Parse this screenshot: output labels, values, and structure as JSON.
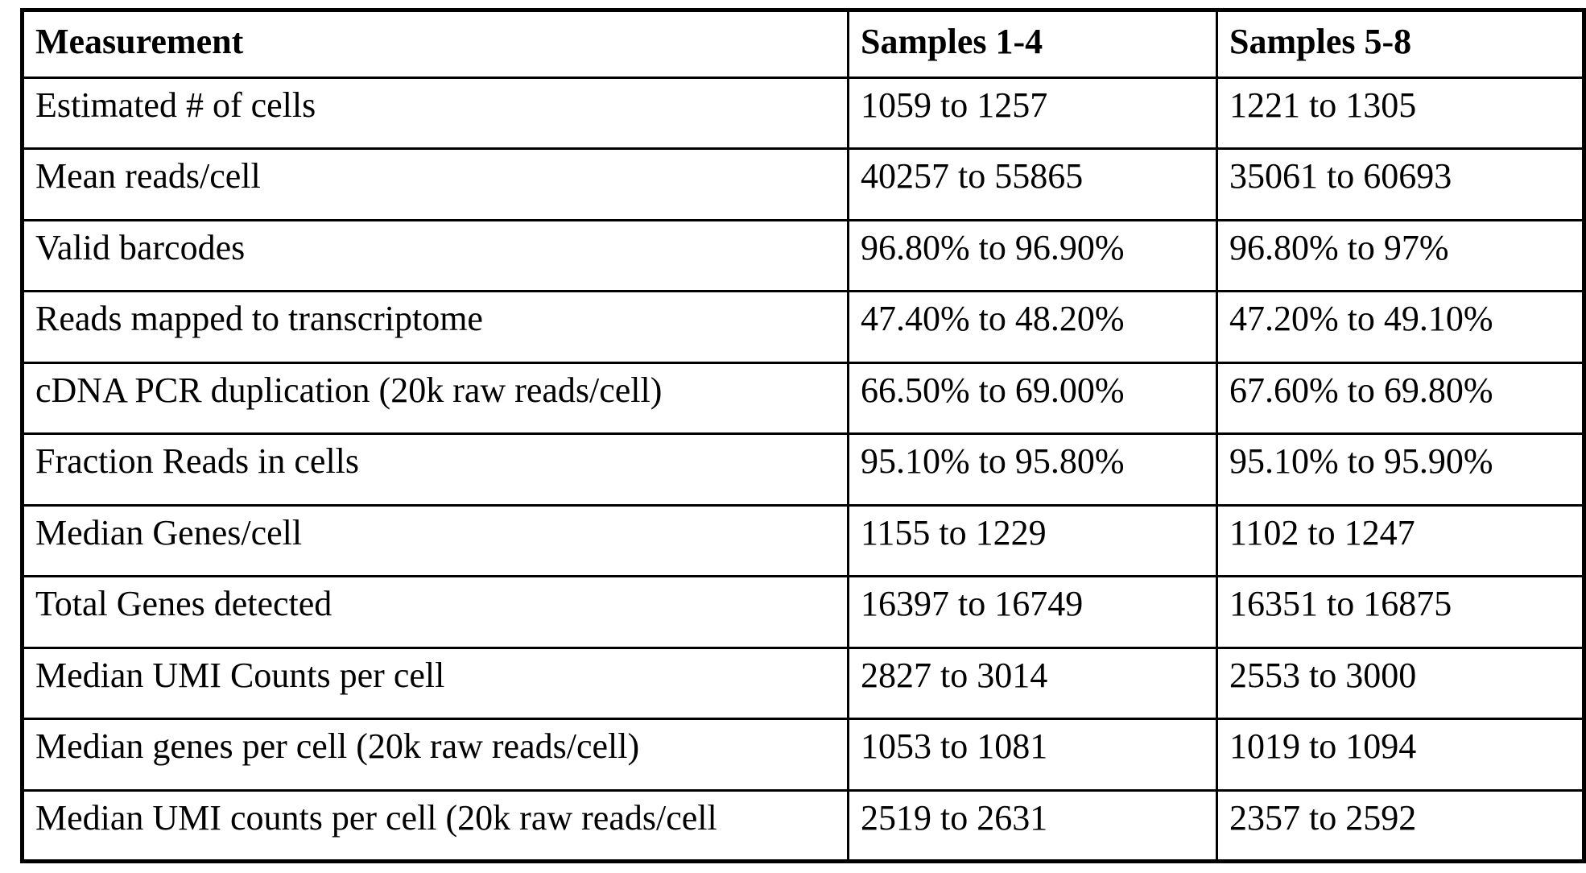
{
  "colors": {
    "background": "#ffffff",
    "border": "#000000",
    "text": "#000000"
  },
  "table": {
    "columns": {
      "measurement": "Measurement",
      "samples14": "Samples 1-4",
      "samples58": "Samples 5-8"
    },
    "rows": [
      {
        "measurement": "Estimated # of cells",
        "samples14": "1059 to 1257",
        "samples58": "1221 to 1305"
      },
      {
        "measurement": "Mean reads/cell",
        "samples14": "40257 to 55865",
        "samples58": "35061 to 60693"
      },
      {
        "measurement": "Valid barcodes",
        "samples14": "96.80% to 96.90%",
        "samples58": "96.80% to 97%"
      },
      {
        "measurement": "Reads mapped to transcriptome",
        "samples14": "47.40% to 48.20%",
        "samples58": "47.20% to 49.10%"
      },
      {
        "measurement": "cDNA PCR duplication (20k raw reads/cell)",
        "samples14": "66.50% to 69.00%",
        "samples58": "67.60% to 69.80%"
      },
      {
        "measurement": "Fraction Reads in cells",
        "samples14": "95.10% to 95.80%",
        "samples58": "95.10% to 95.90%"
      },
      {
        "measurement": "Median Genes/cell",
        "samples14": "1155 to 1229",
        "samples58": "1102 to 1247"
      },
      {
        "measurement": "Total Genes detected",
        "samples14": "16397 to 16749",
        "samples58": "16351 to 16875"
      },
      {
        "measurement": "Median UMI Counts per cell",
        "samples14": "2827 to 3014",
        "samples58": "2553 to 3000"
      },
      {
        "measurement": "Median genes per cell (20k raw reads/cell)",
        "samples14": "1053 to 1081",
        "samples58": "1019 to 1094"
      },
      {
        "measurement": "Median UMI counts per cell (20k raw reads/cell",
        "samples14": "2519 to 2631",
        "samples58": "2357 to 2592"
      }
    ]
  }
}
